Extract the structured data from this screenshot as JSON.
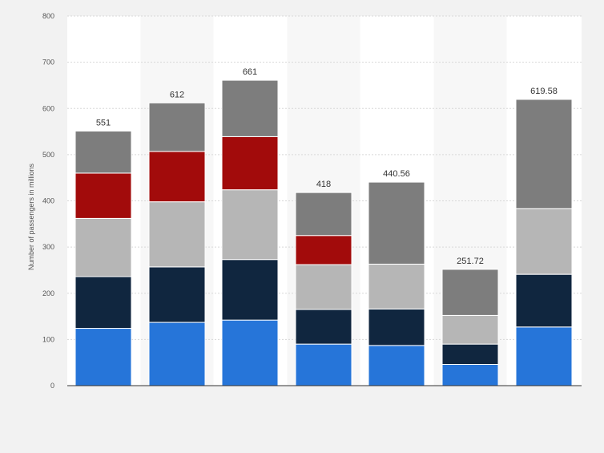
{
  "colors": {
    "background": "#f2f2f2",
    "plot_area": "#ffffff",
    "band": "#f7f7f7",
    "gridline": "#d8d8d8",
    "series": [
      "#2675d9",
      "#10263f",
      "#b6b6b6",
      "#a20b0b",
      "#7d7d7d"
    ]
  },
  "chart_data": {
    "type": "bar",
    "stacked": true,
    "categories": [
      "",
      "",
      "",
      "",
      "",
      "",
      ""
    ],
    "totals": [
      "551",
      "612",
      "661",
      "418",
      "440.56",
      "251.72",
      "619.58"
    ],
    "series": [
      {
        "values": [
          124,
          137,
          142,
          90,
          87,
          46,
          127
        ]
      },
      {
        "values": [
          112,
          120,
          131,
          75,
          79,
          44,
          114
        ]
      },
      {
        "values": [
          126,
          141,
          151,
          97,
          97,
          62,
          142
        ]
      },
      {
        "values": [
          98,
          109,
          115,
          63,
          0,
          0,
          0
        ]
      },
      {
        "values": [
          91,
          105,
          122,
          93,
          177.56,
          99.72,
          236.58
        ]
      }
    ],
    "ylabel": "Number of passengers in millions",
    "ylim": [
      0,
      800
    ],
    "yticks": [
      0,
      100,
      200,
      300,
      400,
      500,
      600,
      700,
      800
    ],
    "grid": true,
    "legend": "none"
  }
}
